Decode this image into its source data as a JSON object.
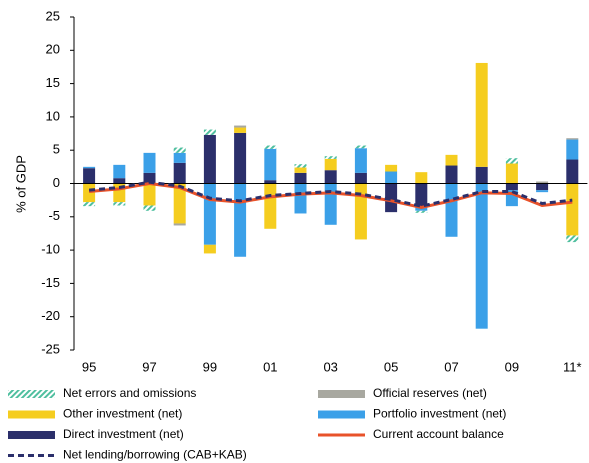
{
  "chart_data": {
    "type": "stacked-bar-line",
    "y_label": "% of GDP",
    "categories": [
      "95",
      null,
      "97",
      null,
      "99",
      null,
      "01",
      null,
      "03",
      null,
      "05",
      null,
      "07",
      null,
      "09",
      null,
      "11*"
    ],
    "ylim": [
      -25,
      25
    ],
    "yticks": [
      25,
      20,
      15,
      10,
      5,
      0,
      -5,
      -10,
      -15,
      -20,
      -25
    ],
    "series": [
      {
        "name": "Direct investment (net)",
        "color": "#2b2f6b",
        "kind": "bar",
        "values": [
          2.3,
          0.8,
          1.6,
          3.1,
          7.3,
          7.6,
          0.5,
          1.6,
          2.0,
          1.6,
          -4.3,
          -3.5,
          2.7,
          2.5,
          -1.0,
          -1.0,
          3.6
        ]
      },
      {
        "name": "Portfolio investment (net)",
        "color": "#3ba0e8",
        "kind": "bar",
        "values": [
          0.2,
          2.0,
          3.0,
          1.5,
          -9.2,
          -11.0,
          4.7,
          -4.5,
          -6.2,
          3.7,
          1.8,
          -0.6,
          -8.0,
          -21.8,
          -2.4,
          -0.3,
          3.0
        ]
      },
      {
        "name": "Other investment (net)",
        "color": "#f5cd1f",
        "kind": "bar",
        "values": [
          -2.8,
          -2.8,
          -3.3,
          -6.0,
          -1.3,
          0.8,
          -6.8,
          0.8,
          1.7,
          -8.4,
          1.0,
          1.7,
          1.6,
          15.6,
          3.0,
          0,
          -7.8
        ]
      },
      {
        "name": "Official reserves (net)",
        "color": "#a8a8a0",
        "kind": "bar",
        "values": [
          0,
          0,
          0,
          -0.3,
          0,
          0.3,
          0,
          0,
          0,
          0,
          0,
          0,
          0,
          0,
          0,
          0.3,
          0.2
        ]
      },
      {
        "name": "Net errors and omissions",
        "color": "#4fbf9f",
        "kind": "bar",
        "pattern": "hatch",
        "values": [
          -0.6,
          -0.5,
          -0.8,
          0.8,
          0.8,
          0,
          0.5,
          0.5,
          0.4,
          0.4,
          0,
          -0.3,
          0,
          0,
          0.8,
          0,
          -1.0
        ]
      },
      {
        "name": "Current account balance",
        "color": "#e8522a",
        "kind": "line",
        "values": [
          -1.2,
          -0.8,
          0,
          -0.6,
          -2.4,
          -2.8,
          -2.0,
          -1.6,
          -1.4,
          -1.8,
          -2.6,
          -3.6,
          -2.6,
          -1.4,
          -1.5,
          -3.3,
          -2.8
        ]
      },
      {
        "name": "Net lending/borrowing (CAB+KAB)",
        "color": "#2b2f6b",
        "kind": "line",
        "dash": "dashed",
        "values": [
          -1.0,
          -0.6,
          0.2,
          -0.4,
          -2.2,
          -2.6,
          -1.8,
          -1.5,
          -1.2,
          -1.6,
          -2.4,
          -3.4,
          -2.4,
          -1.2,
          -1.2,
          -3.0,
          -2.5
        ]
      }
    ]
  }
}
